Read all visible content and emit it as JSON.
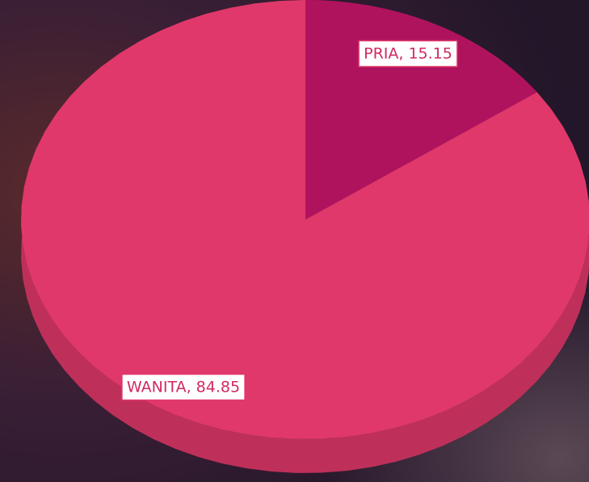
{
  "chart_data": {
    "type": "pie",
    "values": [
      15.15,
      84.85
    ],
    "value_labels": [
      "PRIA, 15.15",
      "WANITA, 84.85"
    ],
    "colors": [
      "#b0135e",
      "#e0386a"
    ]
  }
}
